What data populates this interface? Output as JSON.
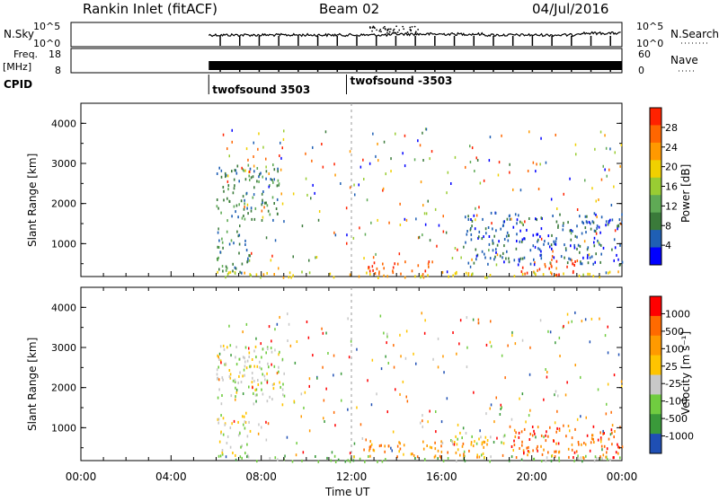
{
  "header": {
    "title": "Rankin Inlet (fitACF)",
    "beam": "Beam 02",
    "date": "04/Jul/2016"
  },
  "noise_panel": {
    "left_label": "N.Sky",
    "right_label": "N.Search",
    "left_ticks": [
      "10^5",
      "10^0"
    ],
    "right_ticks": [
      "10^5",
      "10^0"
    ]
  },
  "freq_panel": {
    "left_label_line1": "Freq.",
    "left_label_line2": "[MHz]",
    "right_label": "Nave",
    "left_ticks": [
      "18",
      "8"
    ],
    "right_ticks": [
      "60",
      "0"
    ]
  },
  "cpid": {
    "label": "CPID",
    "segments": [
      {
        "name": "twofsound 3503",
        "start_hour": 6.0
      },
      {
        "name": "twofsound -3503",
        "start_hour": 12.0
      }
    ]
  },
  "colors": {
    "power": [
      "#0000ff",
      "#1f5fb4",
      "#3a7a3a",
      "#5faa55",
      "#99cc33",
      "#f0d000",
      "#ff9900",
      "#ff6600",
      "#ff2200"
    ],
    "velocity": [
      "#ff0000",
      "#ff6a00",
      "#ff9a00",
      "#ffc400",
      "#c8c8c8",
      "#70cc40",
      "#3a9a3a",
      "#1f4fb4"
    ]
  },
  "chart_data": [
    {
      "type": "heatmap",
      "name": "power",
      "ylabel": "Slant Range [km]",
      "ylim": [
        180,
        4500
      ],
      "yticks": [
        "1000",
        "2000",
        "3000",
        "4000"
      ],
      "xlim": [
        0,
        24
      ],
      "colorbar": {
        "label": "Power [dB]",
        "range": [
          0,
          30
        ],
        "ticks": [
          "4",
          "8",
          "12",
          "16",
          "20",
          "24",
          "28"
        ]
      },
      "regions": [
        {
          "t0": 6.0,
          "t1": 8.8,
          "r0": 1600,
          "r1": 3000,
          "level": 2
        },
        {
          "t0": 6.0,
          "t1": 7.5,
          "r0": 300,
          "r1": 1400,
          "level": 2
        },
        {
          "t0": 6.0,
          "t1": 24.0,
          "r0": 180,
          "r1": 330,
          "level": 5
        },
        {
          "t0": 12.5,
          "t1": 15.5,
          "r0": 250,
          "r1": 600,
          "level": 7
        },
        {
          "t0": 19.5,
          "t1": 22.0,
          "r0": 250,
          "r1": 600,
          "level": 8
        },
        {
          "t0": 17.0,
          "t1": 24.0,
          "r0": 500,
          "r1": 1800,
          "level": 1
        }
      ]
    },
    {
      "type": "heatmap",
      "name": "velocity",
      "ylabel": "Slant Range [km]",
      "ylim": [
        180,
        4500
      ],
      "yticks": [
        "1000",
        "2000",
        "3000",
        "4000"
      ],
      "xlim": [
        0,
        24
      ],
      "xlabel": "Time UT",
      "xticks": [
        "00:00",
        "04:00",
        "08:00",
        "12:00",
        "16:00",
        "20:00",
        "00:00"
      ],
      "colorbar": {
        "label": "Velocity [m s^-1]",
        "ticks": [
          "1000",
          "500",
          "100",
          "25",
          "-25",
          "-100",
          "-500",
          "-1000"
        ]
      },
      "regions": [
        {
          "t0": 6.0,
          "t1": 9.0,
          "r0": 1600,
          "r1": 3100,
          "level": 4
        },
        {
          "t0": 6.0,
          "t1": 7.5,
          "r0": 300,
          "r1": 1400,
          "level": 4
        },
        {
          "t0": 6.0,
          "t1": 24.0,
          "r0": 180,
          "r1": 330,
          "level": 5
        },
        {
          "t0": 12.5,
          "t1": 18.0,
          "r0": 250,
          "r1": 700,
          "level": 2
        },
        {
          "t0": 19.0,
          "t1": 24.0,
          "r0": 250,
          "r1": 1100,
          "level": 1
        },
        {
          "t0": 16.0,
          "t1": 19.0,
          "r0": 600,
          "r1": 900,
          "level": 4
        }
      ]
    }
  ]
}
